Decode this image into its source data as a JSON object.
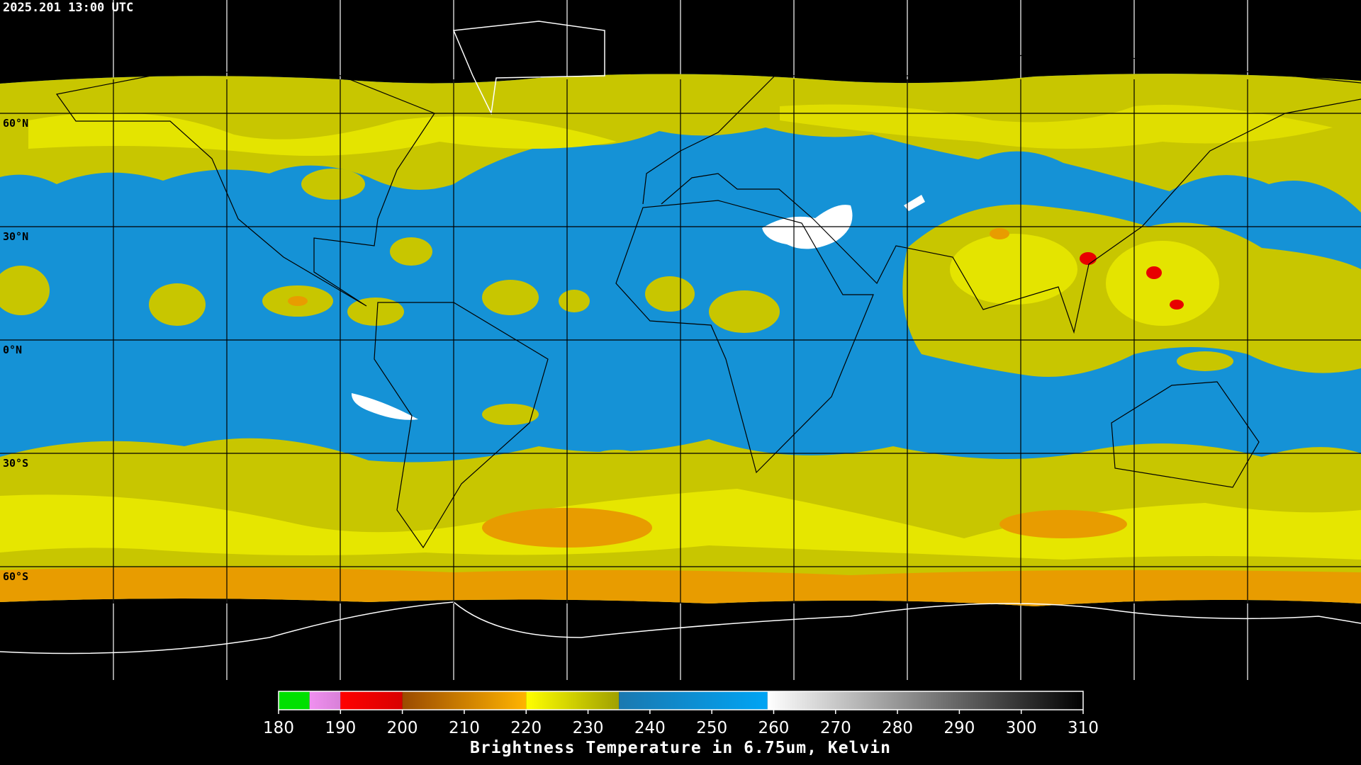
{
  "header": {
    "timestamp": "2025.201 13:00 UTC"
  },
  "map": {
    "lon_range": [
      -180,
      180
    ],
    "lat_range": [
      -90,
      90
    ],
    "lon_lines": [
      -150,
      -120,
      -90,
      -60,
      -30,
      0,
      30,
      60,
      90,
      120,
      150
    ],
    "lat_labels": [
      {
        "label": "60°N",
        "lat": 60
      },
      {
        "label": "30°N",
        "lat": 30
      },
      {
        "label": "0°N",
        "lat": 0
      },
      {
        "label": "30°S",
        "lat": -30
      },
      {
        "label": "60°S",
        "lat": -60
      }
    ]
  },
  "colorbar": {
    "title": "Brightness Temperature in 6.75um, Kelvin",
    "range": [
      180,
      310
    ],
    "ticks": [
      180,
      190,
      200,
      210,
      220,
      230,
      240,
      250,
      260,
      270,
      280,
      290,
      300,
      310
    ],
    "segments": [
      {
        "range": [
          180,
          185
        ],
        "colors": [
          "#00e000",
          "#00e000"
        ]
      },
      {
        "range": [
          185,
          190
        ],
        "colors": [
          "#f090f0",
          "#d880d8"
        ]
      },
      {
        "range": [
          190,
          200
        ],
        "colors": [
          "#ff0000",
          "#d80000"
        ]
      },
      {
        "range": [
          200,
          220
        ],
        "colors": [
          "#9a4a00",
          "#ffb400"
        ]
      },
      {
        "range": [
          220,
          235
        ],
        "colors": [
          "#ffff00",
          "#a0a000"
        ]
      },
      {
        "range": [
          235,
          259
        ],
        "colors": [
          "#1a78b0",
          "#00a4f4"
        ]
      },
      {
        "range": [
          259,
          310
        ],
        "colors": [
          "#ffffff",
          "#000000"
        ]
      }
    ]
  }
}
